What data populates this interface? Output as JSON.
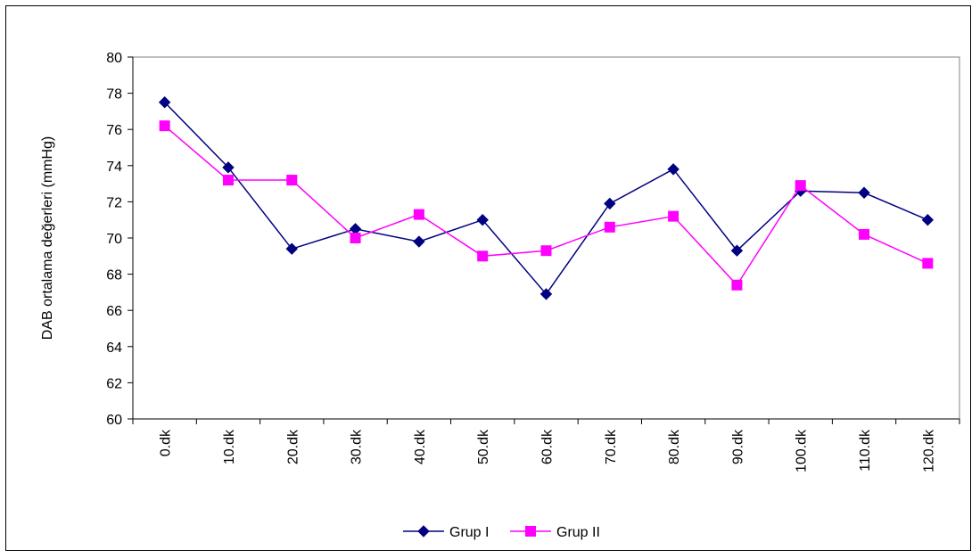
{
  "chart_data": {
    "type": "line",
    "title": "",
    "xlabel": "",
    "ylabel": "DAB ortalama değerleri (mmHg)",
    "ylim": [
      60,
      80
    ],
    "yticks": [
      60,
      62,
      64,
      66,
      68,
      70,
      72,
      74,
      76,
      78,
      80
    ],
    "grid": false,
    "legend_position": "bottom",
    "categories": [
      "0.dk",
      "10.dk",
      "20.dk",
      "30.dk",
      "40.dk",
      "50.dk",
      "60.dk",
      "70.dk",
      "80.dk",
      "90.dk",
      "100.dk",
      "110.dk",
      "120.dk"
    ],
    "series": [
      {
        "name": "Grup I",
        "color": "#000080",
        "marker": "diamond",
        "values": [
          77.5,
          73.9,
          69.4,
          70.5,
          69.8,
          71.0,
          66.9,
          71.9,
          73.8,
          69.3,
          72.6,
          72.5,
          71.0
        ]
      },
      {
        "name": "Grup II",
        "color": "#FF00FF",
        "marker": "square",
        "values": [
          76.2,
          73.2,
          73.2,
          70.0,
          71.3,
          69.0,
          69.3,
          70.6,
          71.2,
          67.4,
          72.9,
          70.2,
          68.6
        ]
      }
    ]
  }
}
